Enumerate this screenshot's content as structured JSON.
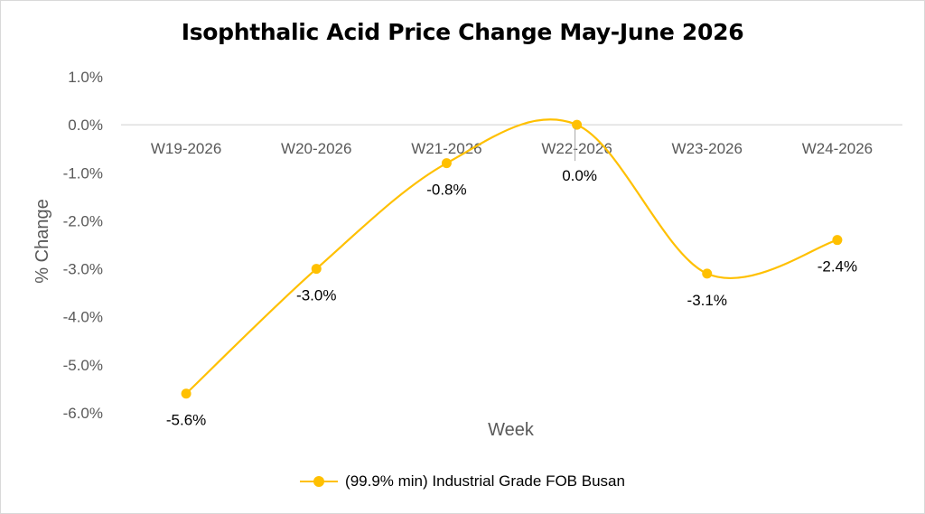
{
  "chart_data": {
    "type": "line",
    "title": "Isophthalic Acid Price Change May-June 2026",
    "xlabel": "Week",
    "ylabel": "% Change",
    "categories": [
      "W19-2026",
      "W20-2026",
      "W21-2026",
      "W22-2026",
      "W23-2026",
      "W24-2026"
    ],
    "series": [
      {
        "name": "(99.9% min) Industrial Grade FOB Busan",
        "values": [
          -5.6,
          -3.0,
          -0.8,
          0.0,
          -3.1,
          -2.4
        ],
        "data_labels": [
          "-5.6%",
          "-3.0%",
          "-0.8%",
          "0.0%",
          "-3.1%",
          "-2.4%"
        ],
        "color": "#FFC000",
        "smooth": true
      }
    ],
    "ylim": [
      -6.0,
      1.0
    ],
    "y_ticks": [
      1.0,
      0.0,
      -1.0,
      -2.0,
      -3.0,
      -4.0,
      -5.0,
      -6.0
    ],
    "y_tick_labels": [
      "1.0%",
      "0.0%",
      "-1.0%",
      "-2.0%",
      "-3.0%",
      "-4.0%",
      "-5.0%",
      "-6.0%"
    ],
    "x_axis_position": "at-zero",
    "grid": false,
    "legend_position": "bottom"
  }
}
